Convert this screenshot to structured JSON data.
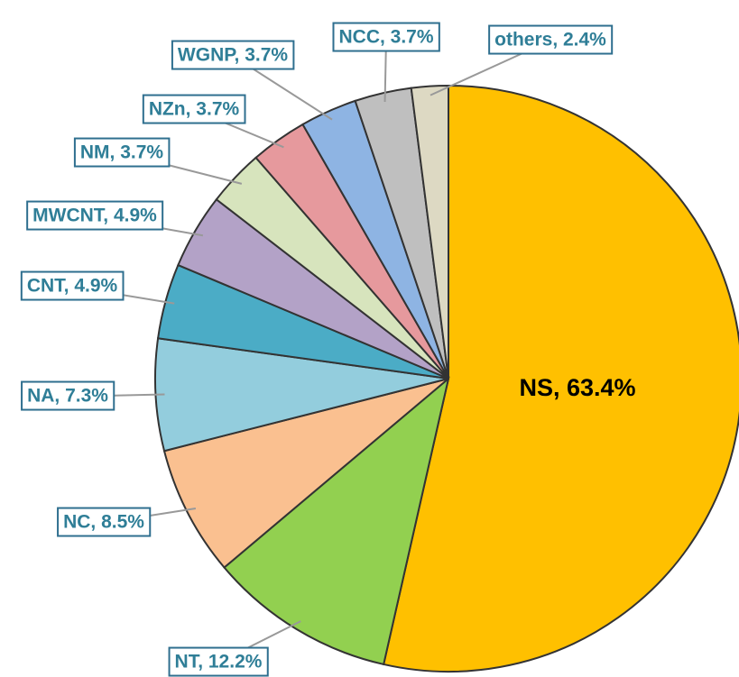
{
  "chart_data": {
    "type": "pie",
    "values": [
      63.4,
      12.2,
      8.5,
      7.3,
      4.9,
      4.9,
      3.7,
      3.7,
      3.7,
      3.7,
      2.4
    ],
    "value_labels": [
      "NS, 63.4%",
      "NT, 12.2%",
      "NC, 8.5%",
      "NA, 7.3%",
      "CNT, 4.9%",
      "MWCNT, 4.9%",
      "NM, 3.7%",
      "NZn, 3.7%",
      "WGNP, 3.7%",
      "NCC, 3.7%",
      "others, 2.4%"
    ],
    "colors": [
      "#ffc000",
      "#92d050",
      "#fac090",
      "#93cddd",
      "#4bacc6",
      "#b3a2c7",
      "#d7e4bd",
      "#e6999d",
      "#8eb4e3",
      "#bfbfbf",
      "#ddd9c3"
    ]
  }
}
